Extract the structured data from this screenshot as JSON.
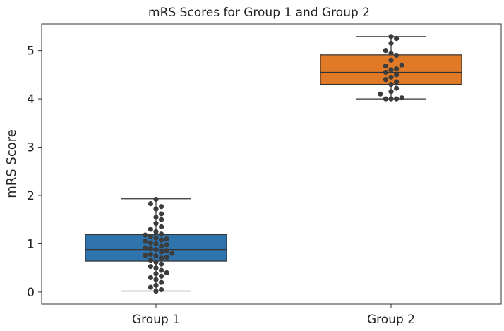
{
  "colors": {
    "group1": "#2f74ad",
    "group2": "#e17a26",
    "points": "#3c3c3c",
    "lines": "#333333"
  },
  "chart_data": {
    "type": "box",
    "title": "mRS Scores for Group 1 and Group 2",
    "xlabel": "",
    "ylabel": "mRS Score",
    "ylim": [
      -0.25,
      5.55
    ],
    "yticks": [
      0,
      1,
      2,
      3,
      4,
      5
    ],
    "categories": [
      "Group 1",
      "Group 2"
    ],
    "boxes": [
      {
        "name": "Group 1",
        "whisker_low": 0.02,
        "q1": 0.64,
        "median": 0.88,
        "q3": 1.19,
        "whisker_high": 1.93
      },
      {
        "name": "Group 2",
        "whisker_low": 4.0,
        "q1": 4.3,
        "median": 4.55,
        "q3": 4.91,
        "whisker_high": 5.29
      }
    ],
    "points": [
      [
        0.02,
        0.05,
        0.1,
        0.14,
        0.2,
        0.26,
        0.3,
        0.33,
        0.38,
        0.4,
        0.45,
        0.5,
        0.53,
        0.58,
        0.62,
        0.66,
        0.7,
        0.72,
        0.75,
        0.76,
        0.78,
        0.8,
        0.83,
        0.85,
        0.88,
        0.9,
        0.92,
        0.95,
        0.98,
        1.0,
        1.02,
        1.05,
        1.08,
        1.1,
        1.12,
        1.15,
        1.18,
        1.2,
        1.25,
        1.3,
        1.35,
        1.42,
        1.5,
        1.55,
        1.62,
        1.72,
        1.77,
        1.83,
        1.92
      ],
      [
        4.0,
        4.0,
        4.0,
        4.02,
        4.1,
        4.15,
        4.22,
        4.3,
        4.35,
        4.4,
        4.45,
        4.5,
        4.55,
        4.6,
        4.62,
        4.68,
        4.7,
        4.8,
        4.9,
        4.95,
        5.0,
        5.15,
        5.25,
        5.29
      ]
    ]
  }
}
